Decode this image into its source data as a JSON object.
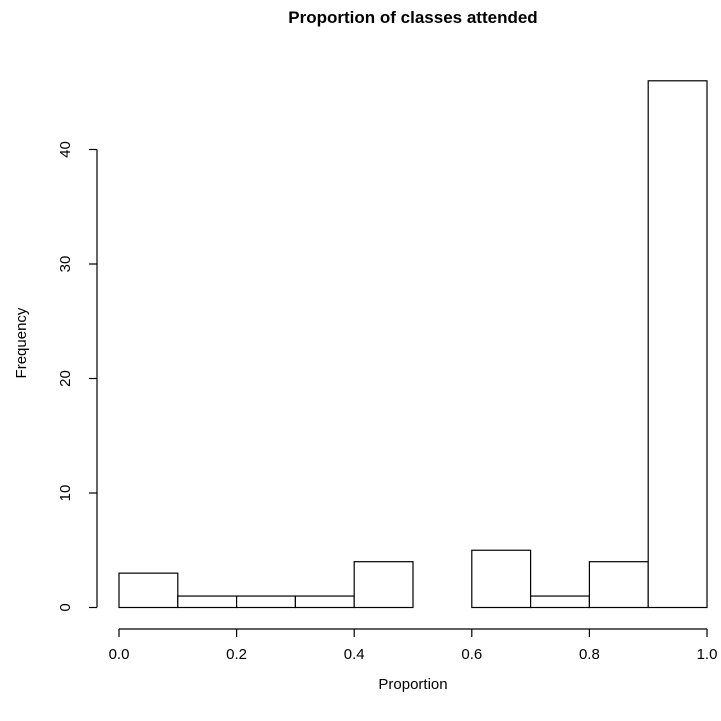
{
  "chart_data": {
    "type": "bar",
    "title": "Proportion of classes attended",
    "xlabel": "Proportion",
    "ylabel": "Frequency",
    "bins": [
      {
        "start": 0.0,
        "end": 0.1,
        "count": 3
      },
      {
        "start": 0.1,
        "end": 0.2,
        "count": 1
      },
      {
        "start": 0.2,
        "end": 0.3,
        "count": 1
      },
      {
        "start": 0.3,
        "end": 0.4,
        "count": 1
      },
      {
        "start": 0.4,
        "end": 0.5,
        "count": 4
      },
      {
        "start": 0.5,
        "end": 0.6,
        "count": 0
      },
      {
        "start": 0.6,
        "end": 0.7,
        "count": 5
      },
      {
        "start": 0.7,
        "end": 0.8,
        "count": 1
      },
      {
        "start": 0.8,
        "end": 0.9,
        "count": 4
      },
      {
        "start": 0.9,
        "end": 1.0,
        "count": 46
      }
    ],
    "x_ticks": [
      "0.0",
      "0.2",
      "0.4",
      "0.6",
      "0.8",
      "1.0"
    ],
    "y_ticks": [
      "0",
      "10",
      "20",
      "30",
      "40"
    ],
    "xlim": [
      0,
      1
    ],
    "ylim": [
      0,
      46
    ],
    "grid": false,
    "legend": "none"
  }
}
